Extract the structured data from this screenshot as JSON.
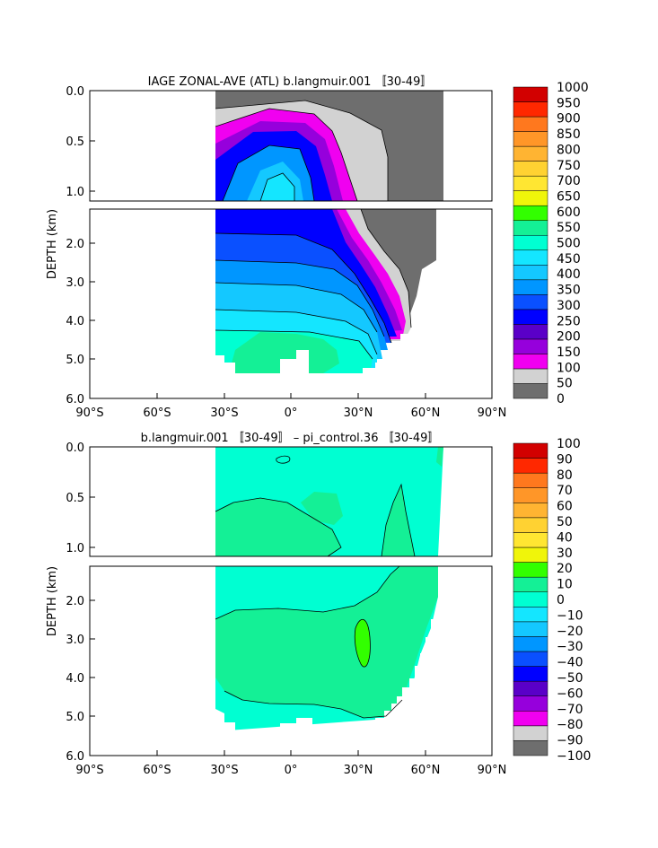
{
  "chart_data": [
    {
      "type": "heatmap",
      "title": "IAGE ZONAL-AVE (ATL) b.langmuir.001 〚30-49〛",
      "ylabel": "DEPTH (km)",
      "xlabel": "",
      "x_ticks": [
        "90°S",
        "60°S",
        "30°S",
        "0°",
        "30°N",
        "60°N",
        "90°N"
      ],
      "x_range": [
        -90,
        90
      ],
      "y_ticks_upper": [
        "0.0",
        "0.5",
        "1.0"
      ],
      "y_ticks_lower": [
        "2.0",
        "3.0",
        "4.0",
        "5.0",
        "6.0"
      ],
      "y_range": [
        0,
        6
      ],
      "colorbar": {
        "levels": [
          "0",
          "50",
          "100",
          "150",
          "200",
          "250",
          "300",
          "350",
          "400",
          "450",
          "500",
          "550",
          "600",
          "650",
          "700",
          "750",
          "800",
          "850",
          "900",
          "950",
          "1000"
        ],
        "colors": [
          "#6e6e6e",
          "#d2d2d2",
          "#f000f0",
          "#9600dc",
          "#5a00c8",
          "#0000ff",
          "#0a50ff",
          "#0096ff",
          "#14c8ff",
          "#14e6ff",
          "#00ffd2",
          "#14f096",
          "#32ff00",
          "#f0f50a",
          "#ffe632",
          "#ffd232",
          "#ffb432",
          "#ff9628",
          "#ff781e",
          "#ff2800",
          "#d20000"
        ]
      }
    },
    {
      "type": "heatmap",
      "title": "b.langmuir.001 〚30-49〛 – pi_control.36 〚30-49〛",
      "ylabel": "DEPTH (km)",
      "xlabel": "",
      "x_ticks": [
        "90°S",
        "60°S",
        "30°S",
        "0°",
        "30°N",
        "60°N",
        "90°N"
      ],
      "x_range": [
        -90,
        90
      ],
      "y_ticks_upper": [
        "0.0",
        "0.5",
        "1.0"
      ],
      "y_ticks_lower": [
        "2.0",
        "3.0",
        "4.0",
        "5.0",
        "6.0"
      ],
      "y_range": [
        0,
        6
      ],
      "colorbar": {
        "levels": [
          "−100",
          "−90",
          "−80",
          "−70",
          "−60",
          "−50",
          "−40",
          "−30",
          "−20",
          "−10",
          "0",
          "10",
          "20",
          "30",
          "40",
          "50",
          "60",
          "70",
          "80",
          "90",
          "100"
        ],
        "colors": [
          "#6e6e6e",
          "#d2d2d2",
          "#f000f0",
          "#9600dc",
          "#5a00c8",
          "#0000ff",
          "#0a50ff",
          "#0096ff",
          "#14c8ff",
          "#14e6ff",
          "#00ffd2",
          "#14f096",
          "#32ff00",
          "#f0f50a",
          "#ffe632",
          "#ffd232",
          "#ffb432",
          "#ff9628",
          "#ff781e",
          "#ff2800",
          "#d20000"
        ]
      }
    }
  ]
}
